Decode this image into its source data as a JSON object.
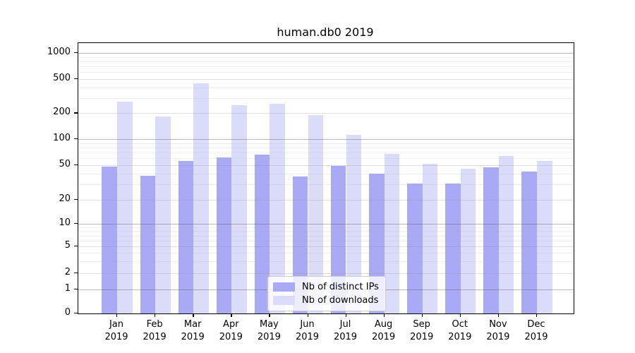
{
  "chart_data": {
    "type": "bar",
    "title": "human.db0 2019",
    "categories": [
      "Jan 2019",
      "Feb 2019",
      "Mar 2019",
      "Apr 2019",
      "May 2019",
      "Jun 2019",
      "Jul 2019",
      "Aug 2019",
      "Sep 2019",
      "Oct 2019",
      "Nov 2019",
      "Dec 2019"
    ],
    "series": [
      {
        "name": "Nb of distinct IPs",
        "color": "#a9a9f6",
        "values": [
          48,
          38,
          56,
          61,
          66,
          37,
          49,
          40,
          31,
          31,
          47,
          42
        ]
      },
      {
        "name": "Nb of downloads",
        "color": "#dbdbfa",
        "values": [
          270,
          182,
          445,
          250,
          255,
          190,
          113,
          67,
          52,
          46,
          64,
          56
        ]
      }
    ],
    "xlabel": "",
    "ylabel": "",
    "yscale": "symlog",
    "yticks": [
      0,
      1,
      2,
      5,
      10,
      20,
      50,
      100,
      200,
      500,
      1000
    ],
    "ylim": [
      0,
      1500
    ],
    "grid": true,
    "legend_position": "lower center"
  },
  "legend": {
    "items": [
      {
        "label": "Nb of distinct IPs",
        "color": "#a9a9f6"
      },
      {
        "label": "Nb of downloads",
        "color": "#dbdbfa"
      }
    ]
  }
}
